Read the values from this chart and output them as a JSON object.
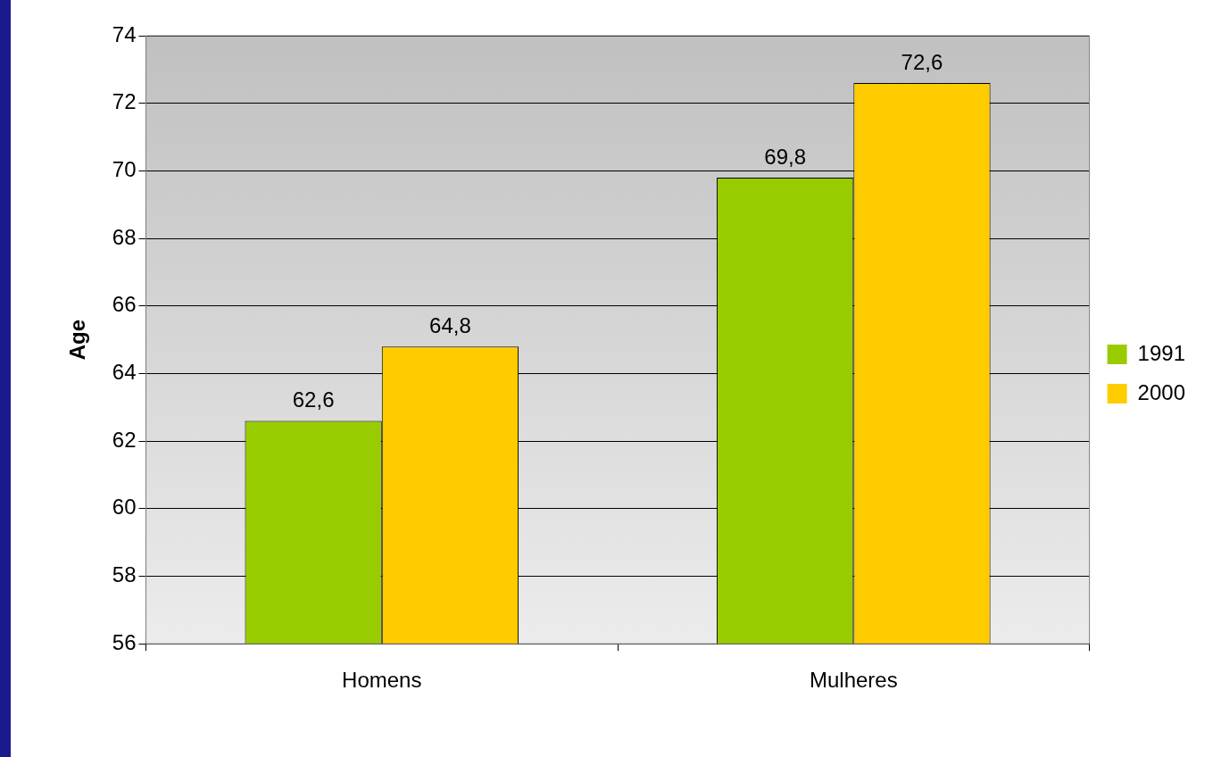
{
  "chart_data": {
    "type": "bar",
    "ylabel": "Age",
    "categories": [
      "Homens",
      "Mulheres"
    ],
    "series": [
      {
        "name": "1991",
        "color": "#99cc00",
        "values": [
          62.6,
          69.8
        ],
        "value_labels": [
          "62,6",
          "69,8"
        ]
      },
      {
        "name": "2000",
        "color": "#ffcc00",
        "values": [
          64.8,
          72.6
        ],
        "value_labels": [
          "64,8",
          "72,6"
        ]
      }
    ],
    "ylim": [
      56,
      74
    ],
    "yticks": [
      56,
      58,
      60,
      62,
      64,
      66,
      68,
      70,
      72,
      74
    ],
    "grid": "y",
    "legend": "right"
  }
}
